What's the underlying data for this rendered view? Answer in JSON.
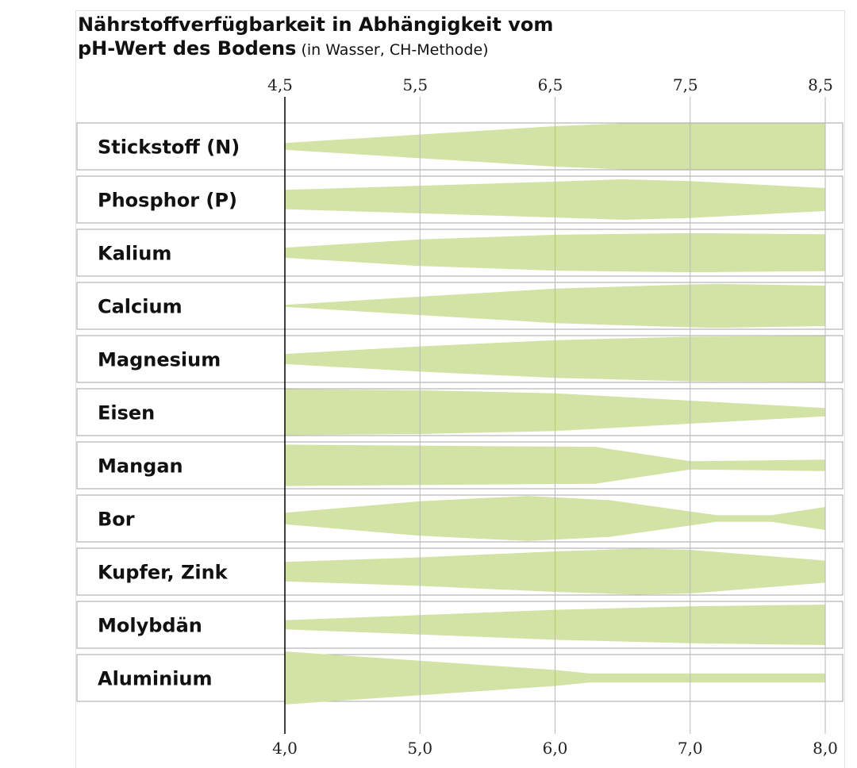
{
  "chart_data": {
    "type": "area",
    "title": "Nährstoffverfügbarkeit in Abhängigkeit vom",
    "subtitle_bold": "pH-Wert des Bodens",
    "subtitle_normal": " (in Wasser, CH-Methode)",
    "top_axis_ticks": [
      "4,5",
      "5,5",
      "6,5",
      "7,5",
      "8,5"
    ],
    "bottom_axis_ticks": [
      "4,0",
      "5,0",
      "6,0",
      "7,0",
      "8,0"
    ],
    "xlim": [
      4.0,
      8.0
    ],
    "colors": {
      "band": "#d3e2a5",
      "row_border": "#a6a6a6",
      "grid": "#b9b9b9",
      "axis": "#000000"
    },
    "series": [
      {
        "name": "Stickstoff (N)",
        "x": [
          4.0,
          6.0,
          6.5,
          8.0
        ],
        "values": [
          0.15,
          0.88,
          1.0,
          1.0
        ]
      },
      {
        "name": "Phosphor (P)",
        "x": [
          4.0,
          6.0,
          6.5,
          7.0,
          8.0
        ],
        "values": [
          0.42,
          0.78,
          0.88,
          0.8,
          0.5
        ]
      },
      {
        "name": "Kalium",
        "x": [
          4.0,
          5.0,
          6.0,
          7.0,
          8.0
        ],
        "values": [
          0.22,
          0.58,
          0.78,
          0.85,
          0.8
        ]
      },
      {
        "name": "Calcium",
        "x": [
          4.0,
          5.0,
          6.0,
          7.0,
          7.2,
          8.0
        ],
        "values": [
          0.04,
          0.4,
          0.75,
          0.93,
          0.95,
          0.88
        ]
      },
      {
        "name": "Magnesium",
        "x": [
          4.0,
          5.0,
          6.0,
          7.0,
          8.0
        ],
        "values": [
          0.22,
          0.55,
          0.82,
          0.97,
          1.0
        ]
      },
      {
        "name": "Eisen",
        "x": [
          4.0,
          5.0,
          6.0,
          7.0,
          8.0
        ],
        "values": [
          1.0,
          0.95,
          0.82,
          0.5,
          0.18
        ]
      },
      {
        "name": "Mangan",
        "x": [
          4.0,
          6.3,
          7.0,
          8.0
        ],
        "values": [
          0.9,
          0.8,
          0.18,
          0.25
        ]
      },
      {
        "name": "Bor",
        "x": [
          4.0,
          5.0,
          5.8,
          6.4,
          7.2,
          7.6,
          8.0
        ],
        "values": [
          0.25,
          0.75,
          0.98,
          0.8,
          0.14,
          0.14,
          0.5
        ]
      },
      {
        "name": "Kupfer, Zink",
        "x": [
          4.0,
          5.0,
          6.0,
          6.6,
          7.0,
          8.0
        ],
        "values": [
          0.42,
          0.62,
          0.88,
          1.0,
          0.95,
          0.48
        ]
      },
      {
        "name": "Molybdän",
        "x": [
          4.0,
          5.0,
          6.0,
          7.0,
          8.0
        ],
        "values": [
          0.2,
          0.42,
          0.65,
          0.8,
          0.88
        ]
      },
      {
        "name": "Aluminium",
        "x": [
          4.0,
          5.0,
          6.0,
          6.25,
          8.0
        ],
        "values": [
          1.15,
          0.75,
          0.35,
          0.2,
          0.2
        ]
      }
    ]
  }
}
